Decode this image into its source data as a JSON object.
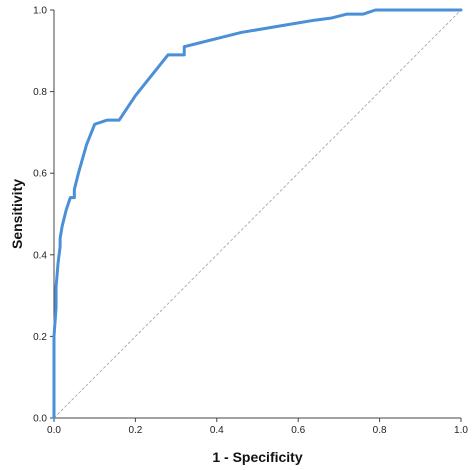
{
  "chart_data": {
    "type": "line",
    "title": "",
    "xlabel": "1 - Specificity",
    "ylabel": "Sensitivity",
    "xlim": [
      0.0,
      1.0
    ],
    "ylim": [
      0.0,
      1.0
    ],
    "xticks": [
      "0.0",
      "0.2",
      "0.4",
      "0.6",
      "0.8",
      "1.0"
    ],
    "yticks": [
      "0.0",
      "0.2",
      "0.4",
      "0.6",
      "0.8",
      "1.0"
    ],
    "grid": false,
    "legend": "none",
    "colors": {
      "roc": "#4a8fd8",
      "reference": "#a0a0a0",
      "axis": "#444444"
    },
    "series": [
      {
        "x": [
          0.0,
          0.0,
          0.005,
          0.005,
          0.01,
          0.015,
          0.015,
          0.02,
          0.03,
          0.04,
          0.05,
          0.05,
          0.06,
          0.08,
          0.1,
          0.13,
          0.16,
          0.2,
          0.24,
          0.28,
          0.32,
          0.32,
          0.36,
          0.4,
          0.46,
          0.52,
          0.58,
          0.64,
          0.68,
          0.72,
          0.76,
          0.79,
          0.81,
          0.87,
          1.0
        ],
        "y": [
          0.0,
          0.2,
          0.27,
          0.32,
          0.38,
          0.42,
          0.44,
          0.47,
          0.51,
          0.54,
          0.54,
          0.56,
          0.6,
          0.67,
          0.72,
          0.73,
          0.73,
          0.79,
          0.84,
          0.89,
          0.89,
          0.91,
          0.92,
          0.93,
          0.945,
          0.955,
          0.965,
          0.975,
          0.98,
          0.99,
          0.99,
          1.0,
          1.0,
          1.0,
          1.0
        ]
      },
      {
        "x": [
          0.0,
          1.0
        ],
        "y": [
          0.0,
          1.0
        ]
      }
    ]
  }
}
